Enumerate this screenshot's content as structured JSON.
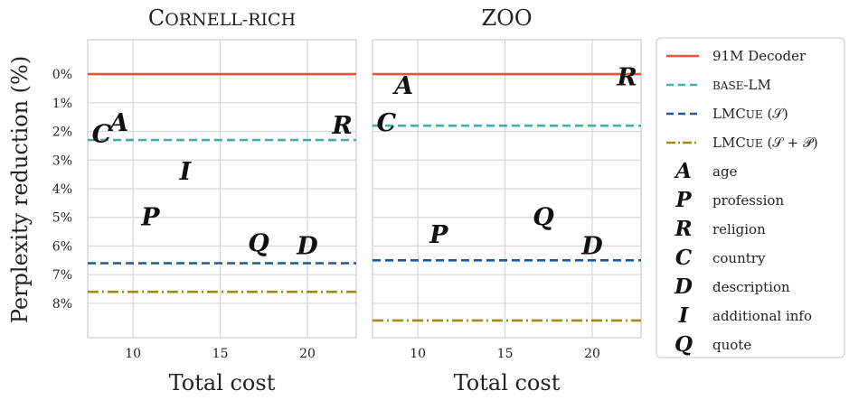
{
  "chart_data": {
    "type": "line",
    "ylabel": "Perplexity reduction (%)",
    "y_ticks": [
      "0%",
      "1%",
      "2%",
      "3%",
      "4%",
      "5%",
      "6%",
      "7%",
      "8%"
    ],
    "x_ticks": [
      10,
      15,
      20
    ],
    "panels": [
      {
        "title": "Cornell-rich",
        "xlabel": "Total cost",
        "xlim": [
          7.4,
          22.8
        ],
        "ylim": [
          -1.2,
          9.2
        ],
        "lines": [
          {
            "series": "91M Decoder",
            "y": 0
          },
          {
            "series": "base-LM",
            "y": 2.3
          },
          {
            "series": "LMCue (S)",
            "y": 6.6
          },
          {
            "series": "LMCue (S+P)",
            "y": 7.6
          }
        ],
        "points": [
          {
            "letter": "A",
            "x": 9.2,
            "y": 1.7
          },
          {
            "letter": "C",
            "x": 8.2,
            "y": 2.1
          },
          {
            "letter": "R",
            "x": 22.0,
            "y": 1.8
          },
          {
            "letter": "I",
            "x": 13.0,
            "y": 3.4
          },
          {
            "letter": "P",
            "x": 11.0,
            "y": 5.0
          },
          {
            "letter": "Q",
            "x": 17.2,
            "y": 5.9
          },
          {
            "letter": "D",
            "x": 20.0,
            "y": 6.0
          }
        ]
      },
      {
        "title": "ZOO",
        "xlabel": "Total cost",
        "xlim": [
          7.4,
          22.8
        ],
        "ylim": [
          -1.2,
          9.2
        ],
        "lines": [
          {
            "series": "91M Decoder",
            "y": 0
          },
          {
            "series": "base-LM",
            "y": 1.8
          },
          {
            "series": "LMCue (S)",
            "y": 6.5
          },
          {
            "series": "LMCue (S+P)",
            "y": 8.6
          }
        ],
        "points": [
          {
            "letter": "A",
            "x": 9.2,
            "y": 0.4
          },
          {
            "letter": "R",
            "x": 22.0,
            "y": 0.1
          },
          {
            "letter": "C",
            "x": 8.2,
            "y": 1.7
          },
          {
            "letter": "Q",
            "x": 17.2,
            "y": 5.0
          },
          {
            "letter": "P",
            "x": 11.2,
            "y": 5.6
          },
          {
            "letter": "D",
            "x": 20.0,
            "y": 6.0
          }
        ]
      }
    ],
    "series": [
      {
        "name": "91M Decoder",
        "color": "#e8533a",
        "style": "solid"
      },
      {
        "name": "base-LM",
        "color": "#3fb0a8",
        "style": "dashed"
      },
      {
        "name": "LMCue (𝒮)",
        "color": "#1f5a96",
        "style": "dashed"
      },
      {
        "name": "LMCue (𝒮 + 𝒫)",
        "color": "#a08a14",
        "style": "dashdot"
      }
    ],
    "legend_placement": "right",
    "legend_letters": [
      {
        "letter": "A",
        "label": "age"
      },
      {
        "letter": "P",
        "label": "profession"
      },
      {
        "letter": "R",
        "label": "religion"
      },
      {
        "letter": "C",
        "label": "country"
      },
      {
        "letter": "D",
        "label": "description"
      },
      {
        "letter": "I",
        "label": "additional info"
      },
      {
        "letter": "Q",
        "label": "quote"
      }
    ],
    "grid": true
  }
}
